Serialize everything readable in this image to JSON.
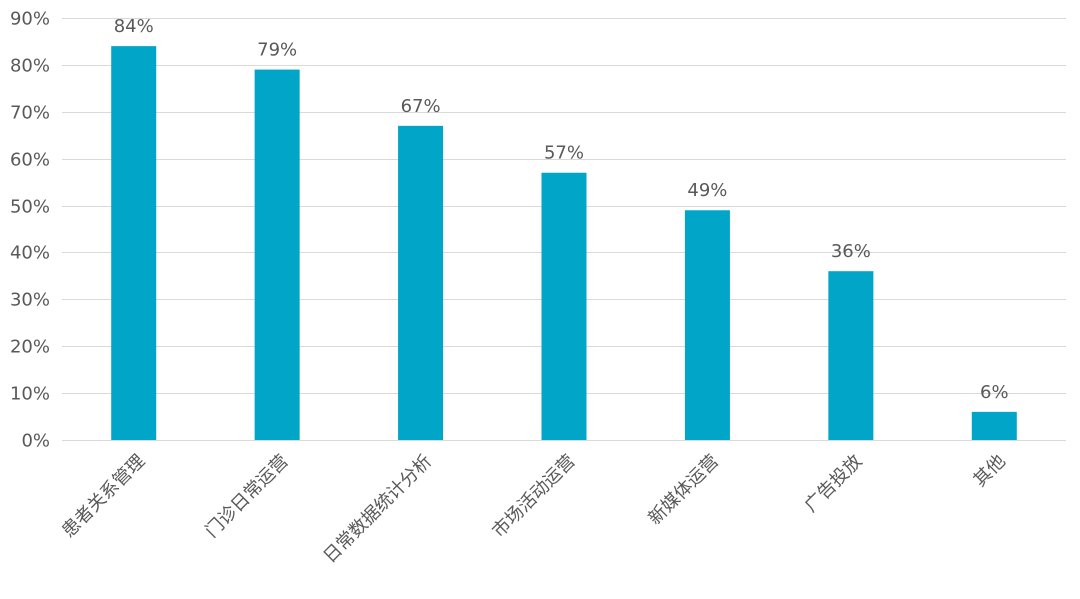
{
  "chart_data": {
    "type": "bar",
    "categories": [
      "患者关系管理",
      "门诊日常运营",
      "日常数据统计分析",
      "市场活动运营",
      "新媒体运营",
      "广告投放",
      "其他"
    ],
    "values": [
      84,
      79,
      67,
      57,
      49,
      36,
      6
    ],
    "data_labels": [
      "84%",
      "79%",
      "67%",
      "57%",
      "49%",
      "36%",
      "6%"
    ],
    "ylim": [
      0,
      90
    ],
    "y_ticks": [
      0,
      10,
      20,
      30,
      40,
      50,
      60,
      70,
      80,
      90
    ],
    "y_tick_labels": [
      "0%",
      "10%",
      "20%",
      "30%",
      "40%",
      "50%",
      "60%",
      "70%",
      "80%",
      "90%"
    ],
    "grid": true,
    "legend": "none",
    "bar_color": "#00a5c8"
  }
}
